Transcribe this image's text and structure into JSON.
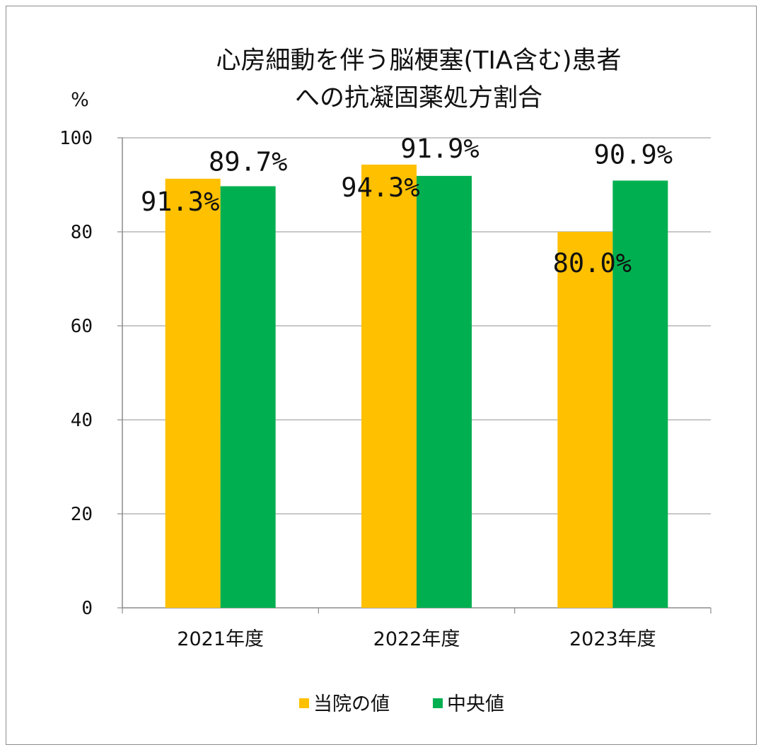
{
  "chart_data": {
    "type": "bar",
    "title_lines": [
      "心房細動を伴う脳梗塞(TIA含む)患者",
      "への抗凝固薬処方割合"
    ],
    "ylabel": "%",
    "xlabel": "",
    "categories": [
      "2021年度",
      "2022年度",
      "2023年度"
    ],
    "series": [
      {
        "name": "当院の値",
        "color": "#FFC000",
        "values": [
          91.3,
          94.3,
          80.0
        ],
        "labels": [
          "91.3%",
          "94.3%",
          "80.0%"
        ]
      },
      {
        "name": "中央値",
        "color": "#00B050",
        "values": [
          89.7,
          91.9,
          90.9
        ],
        "labels": [
          "89.7%",
          "91.9%",
          "90.9%"
        ]
      }
    ],
    "ylim": [
      0,
      100
    ],
    "yticks": [
      "0",
      "20",
      "40",
      "60",
      "80",
      "100"
    ],
    "grid": true,
    "legend_position": "bottom"
  }
}
